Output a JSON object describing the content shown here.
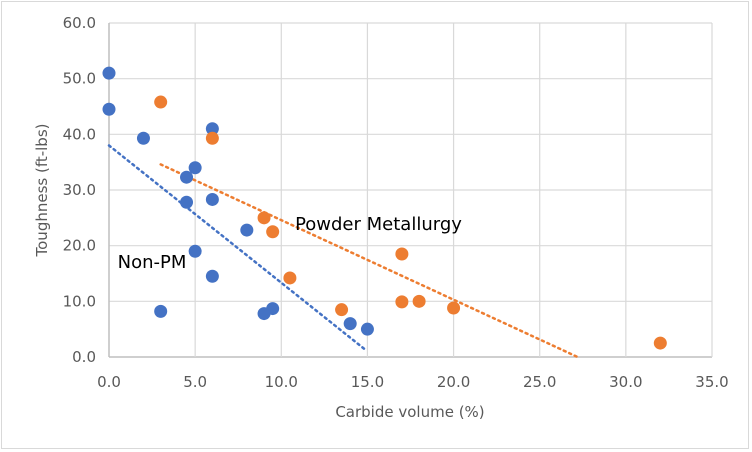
{
  "chart_data": {
    "type": "scatter",
    "title": "",
    "xlabel": "Carbide volume (%)",
    "ylabel": "Toughness (ft-lbs)",
    "xlim": [
      0,
      35
    ],
    "ylim": [
      0,
      60
    ],
    "xticks": [
      0,
      5,
      10,
      15,
      20,
      25,
      30,
      35
    ],
    "yticks": [
      0,
      10,
      20,
      30,
      40,
      50,
      60
    ],
    "xtick_labels": [
      "0.0",
      "5.0",
      "10.0",
      "15.0",
      "20.0",
      "25.0",
      "30.0",
      "35.0"
    ],
    "ytick_labels": [
      "0.0",
      "10.0",
      "20.0",
      "30.0",
      "40.0",
      "50.0",
      "60.0"
    ],
    "grid": true,
    "legend": "none",
    "series": [
      {
        "name": "Non-PM",
        "color": "#4472C4",
        "points": [
          [
            0,
            51.0
          ],
          [
            0,
            44.5
          ],
          [
            2,
            39.3
          ],
          [
            6,
            41.0
          ],
          [
            5,
            34.0
          ],
          [
            4.5,
            32.3
          ],
          [
            4.5,
            27.8
          ],
          [
            6,
            28.3
          ],
          [
            8,
            22.8
          ],
          [
            5,
            19.0
          ],
          [
            6,
            14.5
          ],
          [
            3,
            8.2
          ],
          [
            9,
            7.8
          ],
          [
            9.5,
            8.7
          ],
          [
            14,
            6.0
          ],
          [
            15,
            5.0
          ]
        ],
        "trendline": {
          "style": "dotted",
          "from": [
            0,
            38.0
          ],
          "to": [
            14.8,
            1.5
          ]
        }
      },
      {
        "name": "Powder Metallurgy",
        "color": "#ED7D31",
        "points": [
          [
            3,
            45.8
          ],
          [
            6,
            39.3
          ],
          [
            9,
            25.0
          ],
          [
            9.5,
            22.5
          ],
          [
            10.5,
            14.2
          ],
          [
            13.5,
            8.5
          ],
          [
            17,
            18.5
          ],
          [
            17,
            9.9
          ],
          [
            18,
            10.0
          ],
          [
            20,
            8.8
          ],
          [
            32,
            2.5
          ]
        ],
        "trendline": {
          "style": "dotted",
          "from": [
            3,
            34.6
          ],
          "to": [
            27.2,
            0
          ]
        }
      }
    ],
    "annotations": [
      {
        "text": "Non-PM",
        "at": [
          0.5,
          16.0
        ]
      },
      {
        "text": "Powder Metallurgy",
        "at": [
          10.8,
          22.8
        ]
      }
    ]
  }
}
